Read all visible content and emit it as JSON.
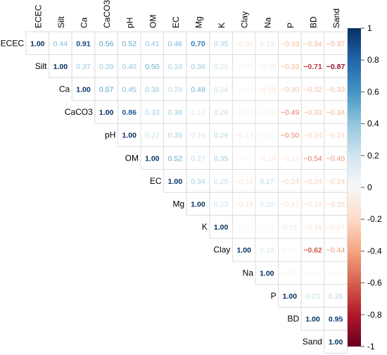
{
  "chart_data": {
    "type": "heatmap",
    "variables": [
      "ECEC",
      "Silt",
      "Ca",
      "CaCO3",
      "pH",
      "OM",
      "EC",
      "Mg",
      "K",
      "Clay",
      "Na",
      "P",
      "BD",
      "Sand"
    ],
    "layout": "upper-triangle",
    "cells": [
      [
        "1.00",
        "0.44",
        "0.91",
        "0.56",
        "0.52",
        "0.41",
        "0.46",
        "0.70",
        "0.35",
        "−0.08",
        "0.13",
        "−0.33",
        "−0.34",
        "−0.37"
      ],
      [
        "1.00",
        "0.37",
        "0.39",
        "0.40",
        "0.50",
        "0.33",
        "0.36",
        "0.20",
        "−0.05",
        "−0.08",
        "−0.33",
        "−0.71",
        "−0.87"
      ],
      [
        "1.00",
        "0.57",
        "0.45",
        "0.38",
        "0.29",
        "0.48",
        "0.24",
        "−0.02",
        "−0.15",
        "−0.30",
        "−0.32",
        "−0.33"
      ],
      [
        "1.00",
        "0.86",
        "0.33",
        "0.38",
        "0.14",
        "0.26",
        "−0.04",
        "−0.06",
        "−0.49",
        "−0.33",
        "−0.34"
      ],
      [
        "1.00",
        "0.22",
        "0.35",
        "0.19",
        "0.29",
        "−0.13",
        "0.03",
        "−0.50",
        "−0.24",
        "−0.24"
      ],
      [
        "1.00",
        "0.52",
        "0.27",
        "0.35",
        "0.00",
        "−0.14",
        "−0.15",
        "−0.54",
        "−0.45"
      ],
      [
        "1.00",
        "0.34",
        "0.25",
        "−0.12",
        "0.27",
        "−0.24",
        "−0.24",
        "−0.24"
      ],
      [
        "1.00",
        "0.23",
        "−0.18",
        "0.22",
        "−0.17",
        "−0.19",
        "−0.25"
      ],
      [
        "1.00",
        "−0.03",
        "0.03",
        "0.15",
        "−0.18",
        "−0.17"
      ],
      [
        "1.00",
        "0.19",
        "0.05",
        "−0.62",
        "−0.44"
      ],
      [
        "1.00",
        "0.03",
        "−0.03",
        "−0.01"
      ],
      [
        "1.00",
        "0.23",
        "0.28"
      ],
      [
        "1.00",
        "0.95"
      ],
      [
        "1.00"
      ]
    ],
    "color_scale": {
      "min": -1,
      "max": 1,
      "ticks": [
        "1",
        "0.8",
        "0.6",
        "0.4",
        "0.2",
        "0",
        "-0.2",
        "-0.4",
        "-0.6",
        "-0.8",
        "-1"
      ],
      "colors": {
        "negative": "#b2182b",
        "zero": "#f7f7f7",
        "positive": "#2166ac"
      }
    }
  }
}
